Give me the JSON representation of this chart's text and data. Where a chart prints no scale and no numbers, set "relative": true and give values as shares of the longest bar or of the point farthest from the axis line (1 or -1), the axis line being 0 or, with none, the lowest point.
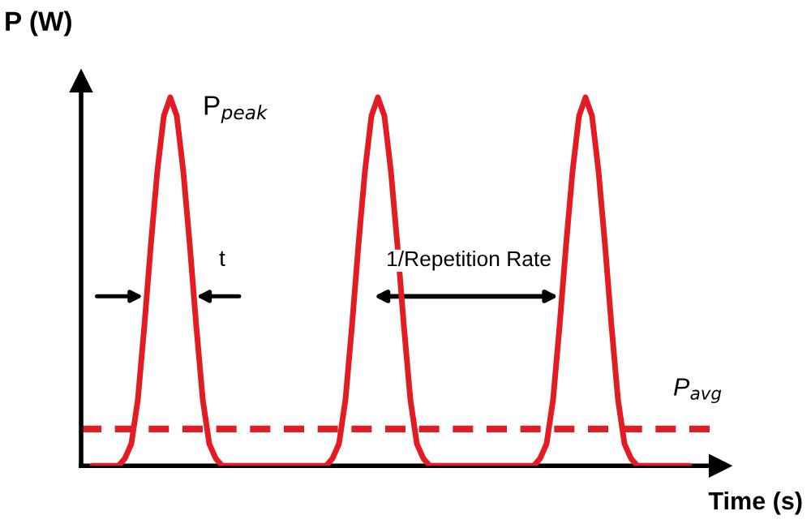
{
  "chart_data": {
    "type": "line",
    "relative": true,
    "xlabel": "Time (s)",
    "ylabel": "P (W)",
    "categories": [
      null,
      null,
      null,
      null,
      null,
      null,
      null,
      null,
      null,
      null,
      null,
      null,
      null,
      null,
      null,
      null,
      null,
      null,
      null,
      null,
      null,
      null,
      null,
      null,
      null,
      null,
      null,
      null,
      null,
      null,
      null,
      null,
      null,
      null,
      null,
      null,
      null,
      null,
      null,
      null,
      null,
      null,
      null,
      null,
      null,
      null,
      null,
      null,
      null,
      null,
      null,
      null,
      null,
      null,
      null,
      null,
      null,
      null,
      null,
      null,
      null,
      null,
      null,
      null,
      null,
      null,
      null,
      null,
      null,
      null,
      null,
      null,
      null,
      null,
      null,
      null,
      null,
      null,
      null,
      null,
      null,
      null,
      null,
      null,
      null,
      null,
      null,
      null,
      null,
      null,
      null,
      null,
      null
    ],
    "series": [
      {
        "color": "#e31b23",
        "values": [
          0,
          0,
          0,
          0,
          0,
          0.02,
          0.06,
          0.18,
          0.38,
          0.6,
          0.8,
          0.95,
          1,
          0.95,
          0.8,
          0.6,
          0.38,
          0.18,
          0.06,
          0.02,
          0,
          0,
          0,
          0,
          0,
          0,
          0,
          0,
          0,
          0,
          0,
          0,
          0,
          0,
          0,
          0,
          0,
          0.02,
          0.06,
          0.18,
          0.38,
          0.6,
          0.8,
          0.95,
          1,
          0.95,
          0.8,
          0.6,
          0.38,
          0.18,
          0.06,
          0.02,
          0,
          0,
          0,
          0,
          0,
          0,
          0,
          0,
          0,
          0,
          0,
          0,
          0,
          0,
          0,
          0,
          0,
          0.02,
          0.06,
          0.18,
          0.38,
          0.6,
          0.8,
          0.95,
          1,
          0.95,
          0.8,
          0.6,
          0.38,
          0.18,
          0.06,
          0.02,
          0,
          0,
          0,
          0,
          0,
          0,
          0,
          0,
          0
        ]
      }
    ],
    "ref_lines": [
      {
        "axis": "y",
        "value": 0.1,
        "label": "P$_{avg}$",
        "color": "#e31b23",
        "line_style": "dashed"
      }
    ],
    "annotations": [
      "P$_{peak}$",
      "t",
      "1/Repetition Rate"
    ],
    "legend": false,
    "marker": "none",
    "line_style": "solid"
  }
}
